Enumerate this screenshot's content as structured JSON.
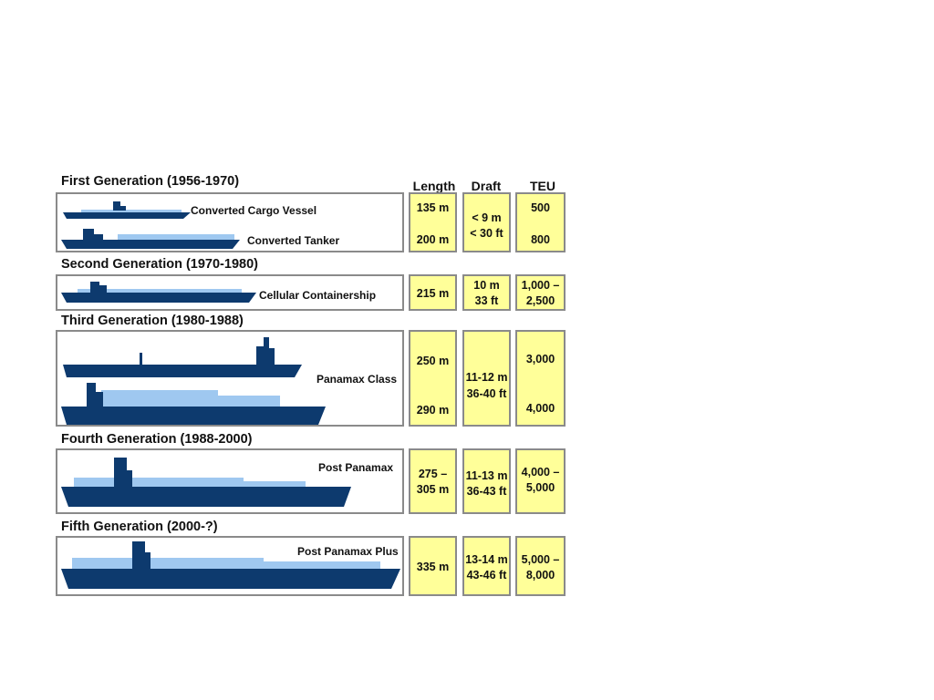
{
  "columns": {
    "length": "Length",
    "draft": "Draft",
    "teu": "TEU"
  },
  "generations": [
    {
      "title": "First Generation (1956-1970)",
      "ships": [
        "Converted Cargo Vessel",
        "Converted Tanker"
      ],
      "length": [
        "135 m",
        "200 m"
      ],
      "draft": [
        "< 9 m",
        "< 30 ft"
      ],
      "teu": [
        "500",
        "800"
      ]
    },
    {
      "title": "Second Generation (1970-1980)",
      "ships": [
        "Cellular Containership"
      ],
      "length": [
        "215 m"
      ],
      "draft": [
        "10 m",
        "33 ft"
      ],
      "teu": [
        "1,000 –",
        "2,500"
      ]
    },
    {
      "title": "Third Generation (1980-1988)",
      "ships": [
        "Panamax Class"
      ],
      "length": [
        "250 m",
        "290 m"
      ],
      "draft": [
        "11-12 m",
        "36-40 ft"
      ],
      "teu": [
        "3,000",
        "4,000"
      ]
    },
    {
      "title": "Fourth Generation (1988-2000)",
      "ships": [
        "Post Panamax"
      ],
      "length": [
        "275 –",
        "305 m"
      ],
      "draft": [
        "11-13 m",
        "36-43 ft"
      ],
      "teu": [
        "4,000 –",
        "5,000"
      ]
    },
    {
      "title": "Fifth Generation (2000-?)",
      "ships": [
        "Post Panamax Plus"
      ],
      "length": [
        "335 m"
      ],
      "draft": [
        "13-14 m",
        "43-46 ft"
      ],
      "teu": [
        "5,000 –",
        "8,000"
      ]
    }
  ],
  "colors": {
    "hull": "#0d3a6e",
    "containers": "#9fc8f0",
    "cell": "#ffff99",
    "border": "#8a8a8a"
  },
  "icons": [
    "container-ship-icon"
  ]
}
